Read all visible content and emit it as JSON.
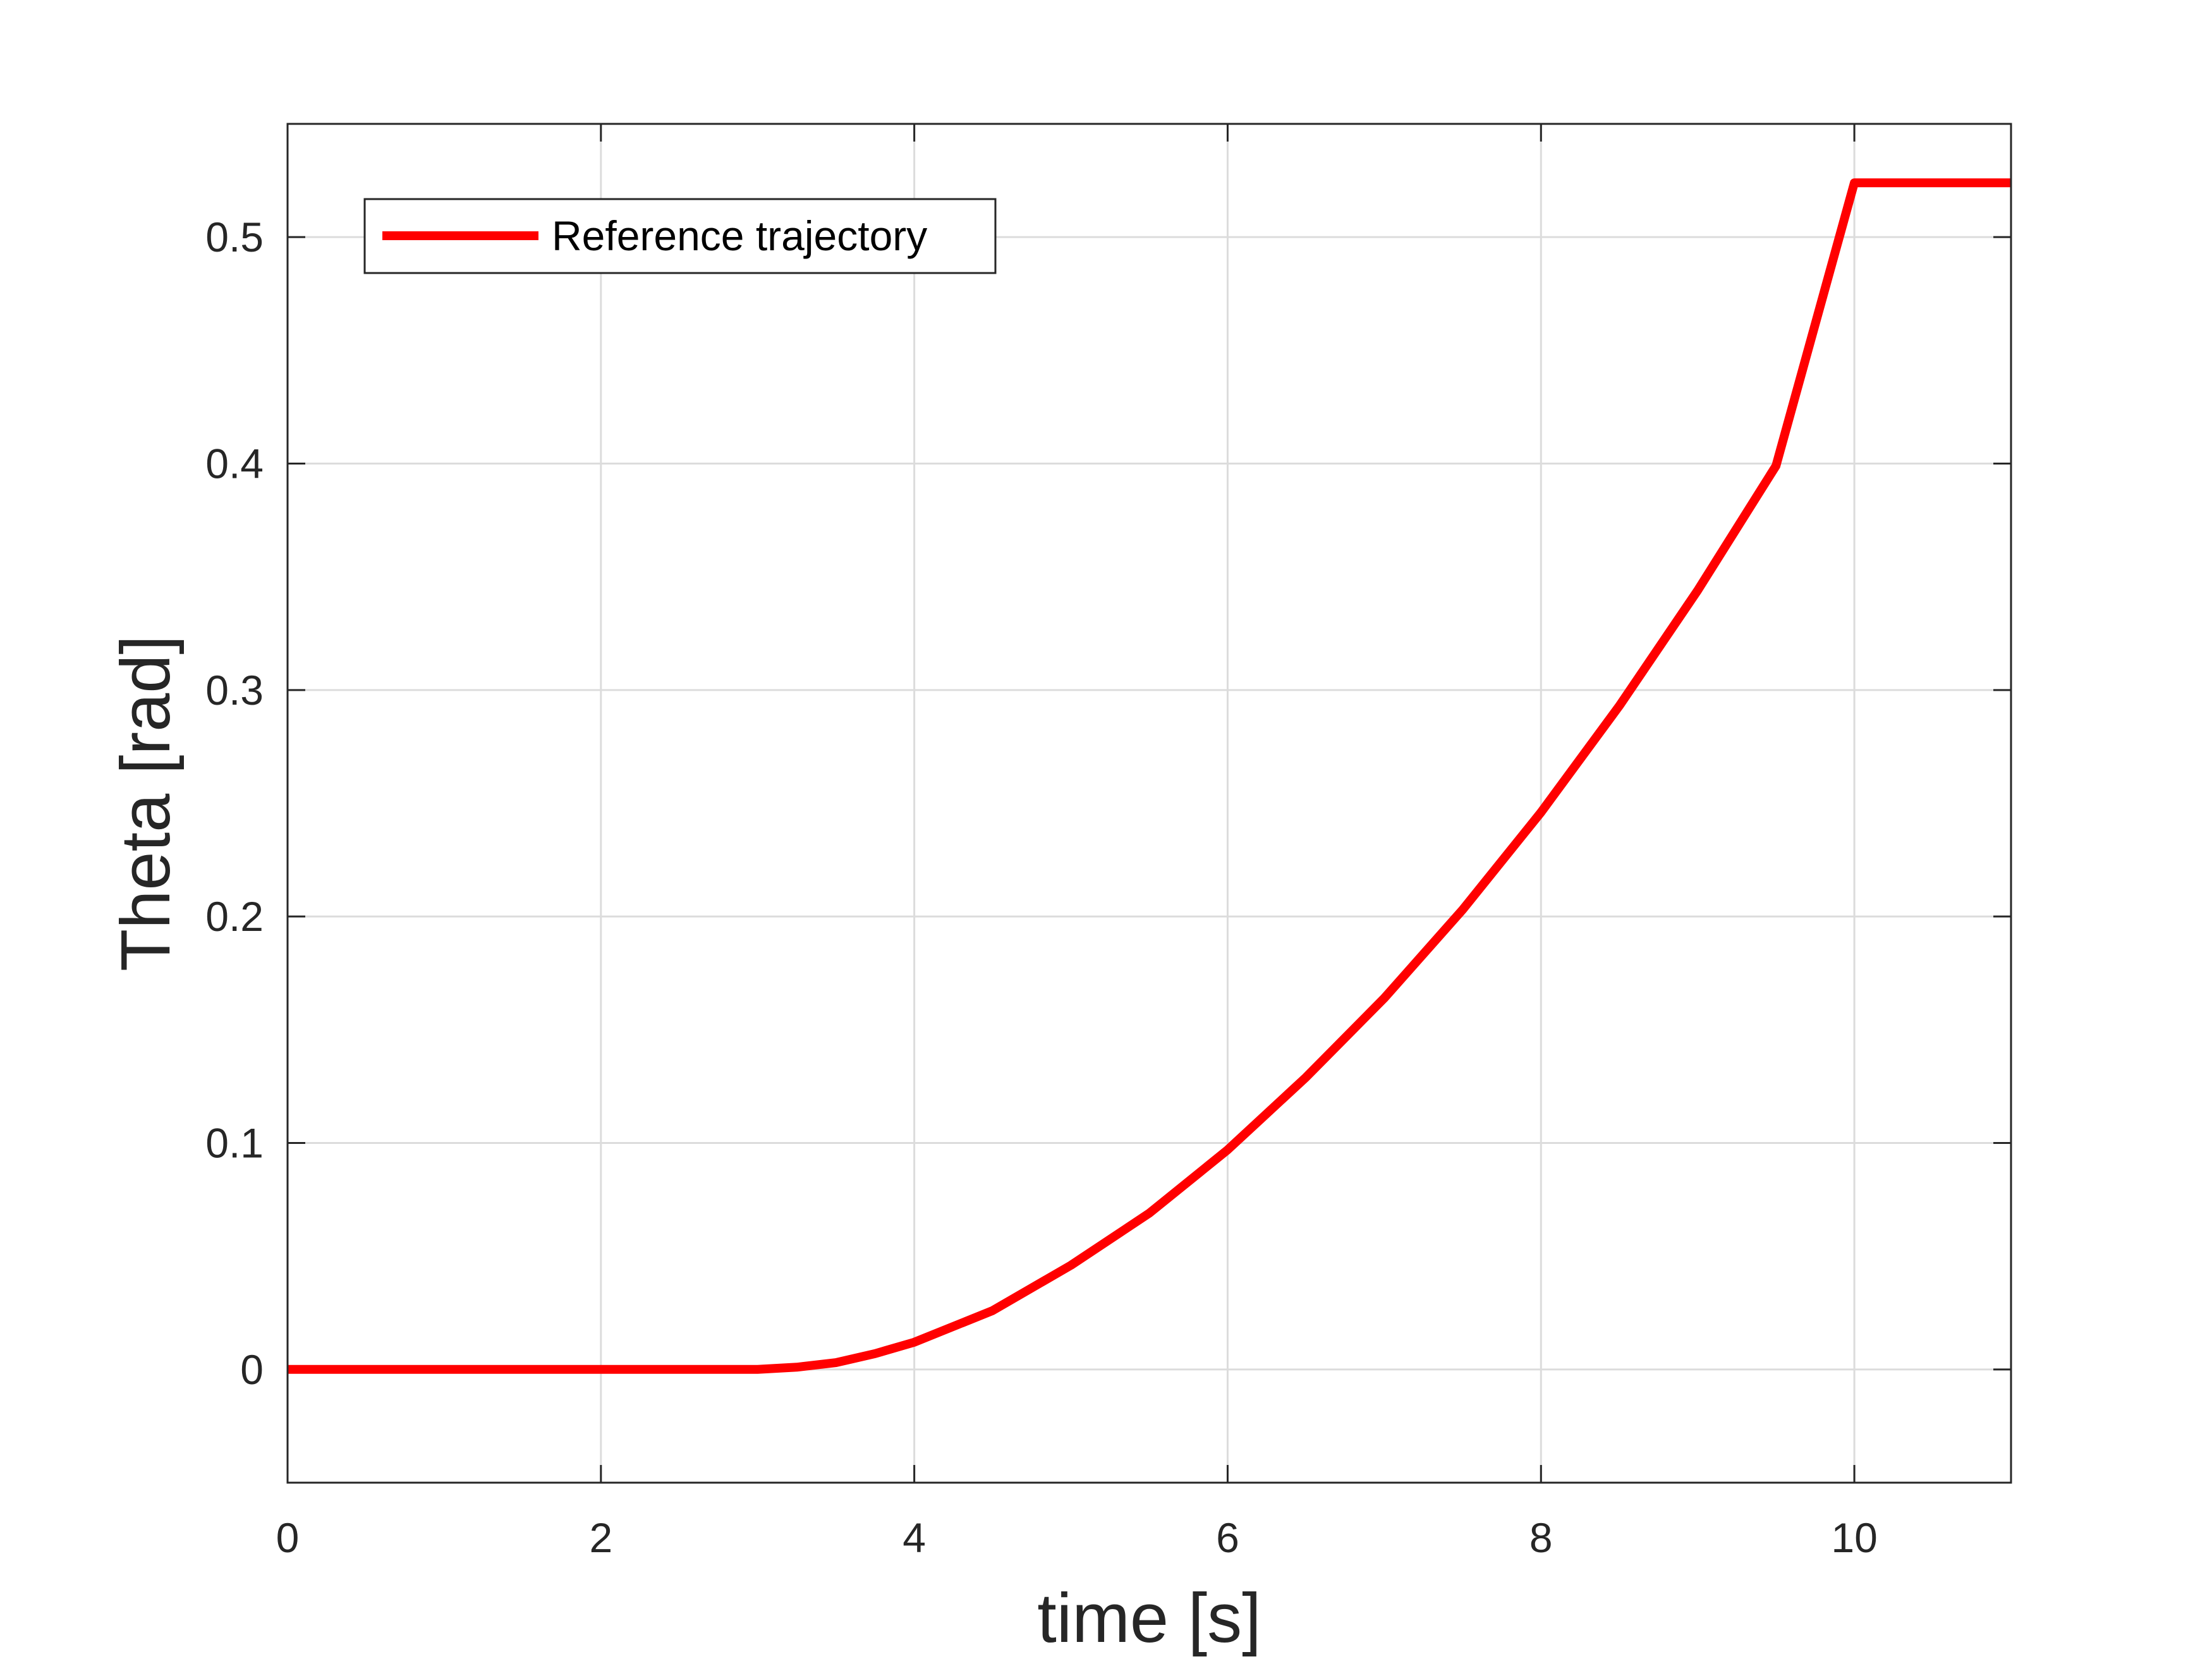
{
  "chart_data": {
    "type": "line",
    "title": "",
    "xlabel": "time [s]",
    "ylabel": "Theta [rad]",
    "xlim": [
      0,
      11
    ],
    "ylim": [
      -0.05,
      0.55
    ],
    "xticks": [
      0,
      2,
      4,
      6,
      8,
      10
    ],
    "yticks": [
      0,
      0.1,
      0.2,
      0.3,
      0.4,
      0.5
    ],
    "xtick_labels": [
      "0",
      "2",
      "4",
      "6",
      "8",
      "10"
    ],
    "ytick_labels": [
      "0",
      "0.1",
      "0.2",
      "0.3",
      "0.4",
      "0.5"
    ],
    "grid": true,
    "legend_position": "top-left",
    "series": [
      {
        "name": "Reference trajectory",
        "color": "#ff0000",
        "x": [
          0,
          1,
          2,
          3,
          3.25,
          3.5,
          3.75,
          4,
          4.5,
          5,
          5.5,
          6,
          6.5,
          7,
          7.5,
          8,
          8.5,
          9,
          9.5,
          10,
          11
        ],
        "y": [
          0,
          0,
          0,
          0,
          0.001,
          0.003,
          0.007,
          0.012,
          0.026,
          0.046,
          0.069,
          0.097,
          0.129,
          0.164,
          0.203,
          0.246,
          0.293,
          0.344,
          0.399,
          0.524,
          0.524
        ]
      }
    ]
  }
}
